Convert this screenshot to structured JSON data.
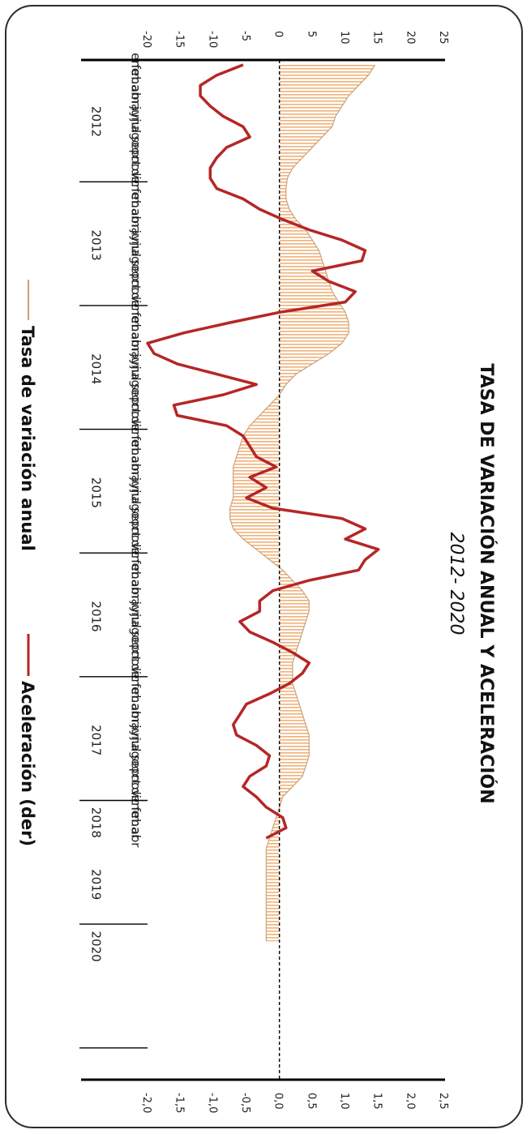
{
  "chart_data": {
    "type": "area+line",
    "title": "TASA DE VARIACIÓN ANUAL Y ACELERACIÓN",
    "subtitle": "2012- 2020",
    "months": [
      "ene",
      "feb",
      "mar",
      "abr",
      "may",
      "jun",
      "jul",
      "ago",
      "sep",
      "oct",
      "nov",
      "dic"
    ],
    "years": [
      "2012",
      "2013",
      "2014",
      "2015",
      "2016",
      "2017",
      "2018",
      "2019",
      "2020"
    ],
    "left_axis": {
      "ticks": [
        "-20",
        "-15",
        "-10",
        "-5",
        "0",
        "5",
        "10",
        "15",
        "20",
        "25"
      ],
      "range": [
        -20,
        25
      ]
    },
    "right_axis": {
      "ticks": [
        "-2,0",
        "-1,5",
        "-1,0",
        "-0,5",
        "0,0",
        "0,5",
        "1,0",
        "1,5",
        "2,0",
        "2,5"
      ],
      "range": [
        -2.0,
        2.5
      ]
    },
    "series": [
      {
        "name": "Tasa de variación anual",
        "axis": "left",
        "color": "#c9a27a",
        "fill": "#f0b27a",
        "values": [
          14.5,
          13.5,
          12,
          10.5,
          9.5,
          8.5,
          8,
          6.5,
          5,
          3.5,
          2,
          1.2,
          1,
          1,
          1.5,
          2.5,
          4,
          5,
          6,
          6.5,
          7,
          7.5,
          8,
          9,
          10,
          10.5,
          10.5,
          9.5,
          7.5,
          5,
          2.5,
          1,
          0,
          -1.5,
          -3,
          -4.5,
          -5.5,
          -6,
          -6.5,
          -7,
          -7,
          -7,
          -7,
          -7.5,
          -7.5,
          -7,
          -5.5,
          -3.5,
          -1.5,
          0.5,
          2,
          3.5,
          4.5,
          4.5,
          4,
          3.5,
          3,
          2.5,
          2,
          2,
          2,
          2.5,
          3,
          3.5,
          4,
          4.5,
          4.5,
          4.5,
          4,
          3.5,
          2,
          0.5,
          0,
          -0.5,
          -1,
          -1.5,
          -2,
          -2,
          -2,
          -2,
          -2,
          -2,
          -2,
          -2,
          -2,
          -2
        ]
      },
      {
        "name": "Aceleración (der)",
        "axis": "right",
        "color": "#b52626",
        "values": [
          -0.55,
          -0.95,
          -1.2,
          -1.2,
          -1.05,
          -0.85,
          -0.55,
          -0.45,
          -0.8,
          -0.95,
          -1.05,
          -1.05,
          -0.95,
          -0.55,
          -0.3,
          0.05,
          0.45,
          0.95,
          1.3,
          1.25,
          0.5,
          0.75,
          1.15,
          1.0,
          0.0,
          -0.75,
          -1.45,
          -2.0,
          -1.9,
          -1.55,
          -0.95,
          -0.35,
          -0.85,
          -1.6,
          -1.55,
          -0.8,
          -0.55,
          -0.45,
          -0.35,
          -0.05,
          -0.45,
          -0.2,
          -0.5,
          -0.1,
          0.95,
          1.3,
          1.0,
          1.5,
          1.3,
          1.2,
          0.45,
          -0.1,
          -0.3,
          -0.3,
          -0.6,
          -0.45,
          -0.1,
          0.2,
          0.45,
          0.35,
          0.15,
          -0.15,
          -0.5,
          -0.6,
          -0.7,
          -0.65,
          -0.35,
          -0.15,
          -0.2,
          -0.45,
          -0.55,
          -0.35,
          -0.2,
          0.05,
          0.1,
          -0.2
        ]
      }
    ],
    "legend_position": "bottom",
    "orientation": "rotated-90"
  }
}
